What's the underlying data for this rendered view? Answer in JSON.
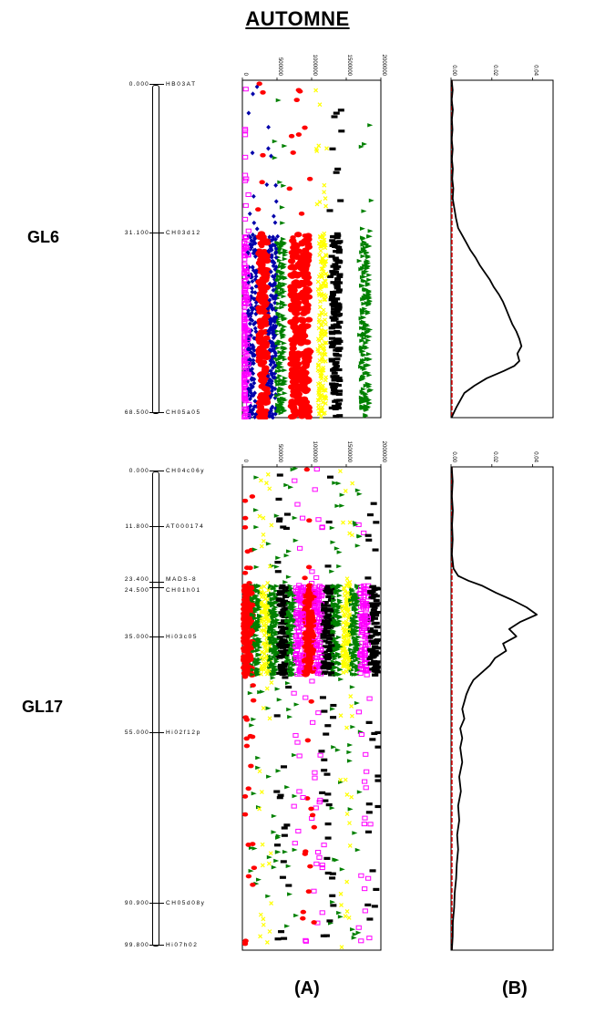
{
  "title": "AUTOMNE",
  "panel_labels": {
    "a": "(A)",
    "b": "(B)"
  },
  "chart_data": [
    {
      "type": "map",
      "linkage_group": "GL6",
      "range": [
        0,
        68.5
      ],
      "markers": [
        {
          "pos": "0.000",
          "value": 0.0,
          "name": "HB03AT"
        },
        {
          "pos": "31.100",
          "value": 31.1,
          "name": "CH03d12"
        },
        {
          "pos": "68.500",
          "value": 68.5,
          "name": "CH05a05"
        }
      ]
    },
    {
      "type": "scatter",
      "linkage_group": "GL6",
      "x_ticks": [
        "0",
        "500000",
        "1000000",
        "1500000",
        "2000000"
      ],
      "xlim": [
        0,
        2000000
      ],
      "ylim": [
        0,
        68.5
      ],
      "seed": 6,
      "cluster_range": [
        31.1,
        68.5
      ],
      "background_density": 170,
      "cluster_density": 1500,
      "columns": [
        {
          "x": 30000,
          "color": "#ff00ff",
          "shape": "square"
        },
        {
          "x": 140000,
          "color": "#0000aa",
          "shape": "diamond"
        },
        {
          "x": 300000,
          "color": "#ff0000",
          "shape": "circle"
        },
        {
          "x": 430000,
          "color": "#0000aa",
          "shape": "diamond"
        },
        {
          "x": 560000,
          "color": "#008000",
          "shape": "triangle"
        },
        {
          "x": 760000,
          "color": "#ff0000",
          "shape": "circle"
        },
        {
          "x": 900000,
          "color": "#ff0000",
          "shape": "circle"
        },
        {
          "x": 1150000,
          "color": "#ffff00",
          "shape": "x"
        },
        {
          "x": 1350000,
          "color": "#000000",
          "shape": "rect"
        },
        {
          "x": 1780000,
          "color": "#008000",
          "shape": "triangle"
        }
      ]
    },
    {
      "type": "line",
      "linkage_group": "GL6",
      "x_ticks": [
        "0.00",
        "0.02",
        "0.04"
      ],
      "xlim": [
        0,
        0.05
      ],
      "ylim": [
        0,
        68.5
      ],
      "threshold": 0.0004,
      "series": [
        {
          "color": "#000000",
          "y": [
            0,
            2,
            4,
            6,
            8,
            10,
            12,
            14,
            16,
            18,
            20,
            22,
            24,
            26,
            28,
            30,
            31.5,
            33,
            34.5,
            36,
            37.5,
            39,
            40.5,
            42,
            43.5,
            45,
            46.5,
            48,
            49.5,
            51,
            52.5,
            54,
            55.5,
            57,
            58,
            59,
            60.5,
            62,
            63.5,
            65,
            66.5,
            68,
            68.5
          ],
          "x": [
            0.0003,
            0.0008,
            0.0003,
            0.0009,
            0.0004,
            0.0007,
            0.0003,
            0.0008,
            0.0004,
            0.0009,
            0.0006,
            0.0011,
            0.0008,
            0.0016,
            0.0024,
            0.0035,
            0.0055,
            0.0075,
            0.0095,
            0.012,
            0.014,
            0.0165,
            0.019,
            0.021,
            0.0235,
            0.0255,
            0.027,
            0.0285,
            0.03,
            0.032,
            0.0335,
            0.0345,
            0.0325,
            0.0335,
            0.031,
            0.026,
            0.0175,
            0.0115,
            0.0065,
            0.0045,
            0.0025,
            0.0008,
            0.0003
          ]
        }
      ]
    },
    {
      "type": "map",
      "linkage_group": "GL17",
      "range": [
        0,
        99.8
      ],
      "markers": [
        {
          "pos": "0.000",
          "value": 0.0,
          "name": "CH04c06y"
        },
        {
          "pos": "11.800",
          "value": 11.8,
          "name": "AT000174"
        },
        {
          "pos": "23.400",
          "value": 23.4,
          "name": "MADS-8"
        },
        {
          "pos": "24.500",
          "value": 24.5,
          "name": "CH01h01"
        },
        {
          "pos": "35.000",
          "value": 35.0,
          "name": "Hi03c05"
        },
        {
          "pos": "55.000",
          "value": 55.0,
          "name": "Hi02f12p"
        },
        {
          "pos": "90.900",
          "value": 90.9,
          "name": "CH05d08y"
        },
        {
          "pos": "99.800",
          "value": 99.8,
          "name": "Hi07h02"
        }
      ]
    },
    {
      "type": "scatter",
      "linkage_group": "GL17",
      "x_ticks": [
        "0",
        "500000",
        "1000000",
        "1500000",
        "2000000"
      ],
      "xlim": [
        0,
        2000000
      ],
      "ylim": [
        0,
        99.8
      ],
      "seed": 17,
      "cluster_range": [
        24.5,
        43
      ],
      "background_density": 430,
      "cluster_density": 1500,
      "columns": [
        {
          "x": 80000,
          "color": "#ff0000",
          "shape": "circle"
        },
        {
          "x": 200000,
          "color": "#008000",
          "shape": "triangle"
        },
        {
          "x": 330000,
          "color": "#ffff00",
          "shape": "x"
        },
        {
          "x": 450000,
          "color": "#008000",
          "shape": "triangle"
        },
        {
          "x": 580000,
          "color": "#000000",
          "shape": "rect"
        },
        {
          "x": 700000,
          "color": "#008000",
          "shape": "triangle"
        },
        {
          "x": 830000,
          "color": "#ff00ff",
          "shape": "square"
        },
        {
          "x": 960000,
          "color": "#ff0000",
          "shape": "circle"
        },
        {
          "x": 1090000,
          "color": "#ff00ff",
          "shape": "square"
        },
        {
          "x": 1230000,
          "color": "#000000",
          "shape": "rect"
        },
        {
          "x": 1360000,
          "color": "#008000",
          "shape": "triangle"
        },
        {
          "x": 1500000,
          "color": "#ffff00",
          "shape": "x"
        },
        {
          "x": 1620000,
          "color": "#008000",
          "shape": "triangle"
        },
        {
          "x": 1760000,
          "color": "#ff00ff",
          "shape": "square"
        },
        {
          "x": 1900000,
          "color": "#000000",
          "shape": "rect"
        }
      ]
    },
    {
      "type": "line",
      "linkage_group": "GL17",
      "x_ticks": [
        "0.00",
        "0.02",
        "0.04"
      ],
      "xlim": [
        0,
        0.05
      ],
      "ylim": [
        0,
        99.8
      ],
      "threshold": 0.0004,
      "series": [
        {
          "color": "#000000",
          "y": [
            0,
            3,
            6,
            9,
            12,
            15,
            18,
            21,
            22.5,
            23.5,
            24.5,
            26,
            27.5,
            29,
            30.5,
            32,
            33.5,
            35,
            36.5,
            38,
            39.5,
            41,
            42.5,
            44,
            45.5,
            47,
            48.5,
            50,
            52,
            54,
            56,
            58,
            61,
            64,
            67,
            70,
            73,
            76,
            79,
            82,
            85,
            88,
            91,
            94,
            97,
            99.8
          ],
          "x": [
            0.0003,
            0.0008,
            0.0004,
            0.0009,
            0.0005,
            0.0008,
            0.0004,
            0.0012,
            0.0035,
            0.0085,
            0.015,
            0.022,
            0.03,
            0.037,
            0.042,
            0.034,
            0.0285,
            0.032,
            0.0255,
            0.027,
            0.0215,
            0.019,
            0.015,
            0.011,
            0.009,
            0.0075,
            0.0065,
            0.0055,
            0.0065,
            0.0045,
            0.0055,
            0.0045,
            0.0055,
            0.004,
            0.0048,
            0.0035,
            0.004,
            0.003,
            0.0035,
            0.0028,
            0.0025,
            0.0018,
            0.0015,
            0.0009,
            0.0008,
            0.0004
          ]
        }
      ]
    }
  ]
}
